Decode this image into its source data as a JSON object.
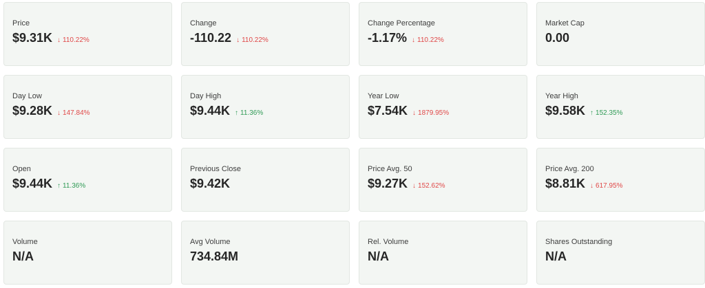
{
  "cards": [
    {
      "label": "Price",
      "value": "$9.31K",
      "change": {
        "direction": "down",
        "arrow": "↓",
        "text": "110.22%"
      }
    },
    {
      "label": "Change",
      "value": "-110.22",
      "change": {
        "direction": "down",
        "arrow": "↓",
        "text": "110.22%"
      }
    },
    {
      "label": "Change Percentage",
      "value": "-1.17%",
      "change": {
        "direction": "down",
        "arrow": "↓",
        "text": "110.22%"
      }
    },
    {
      "label": "Market Cap",
      "value": "0.00"
    },
    {
      "label": "Day Low",
      "value": "$9.28K",
      "change": {
        "direction": "down",
        "arrow": "↓",
        "text": "147.84%"
      }
    },
    {
      "label": "Day High",
      "value": "$9.44K",
      "change": {
        "direction": "up",
        "arrow": "↑",
        "text": "11.36%"
      }
    },
    {
      "label": "Year Low",
      "value": "$7.54K",
      "change": {
        "direction": "down",
        "arrow": "↓",
        "text": "1879.95%"
      }
    },
    {
      "label": "Year High",
      "value": "$9.58K",
      "change": {
        "direction": "up",
        "arrow": "↑",
        "text": "152.35%"
      }
    },
    {
      "label": "Open",
      "value": "$9.44K",
      "change": {
        "direction": "up",
        "arrow": "↑",
        "text": "11.36%"
      }
    },
    {
      "label": "Previous Close",
      "value": "$9.42K"
    },
    {
      "label": "Price Avg. 50",
      "value": "$9.27K",
      "change": {
        "direction": "down",
        "arrow": "↓",
        "text": "152.62%"
      }
    },
    {
      "label": "Price Avg. 200",
      "value": "$8.81K",
      "change": {
        "direction": "down",
        "arrow": "↓",
        "text": "617.95%"
      }
    },
    {
      "label": "Volume",
      "value": "N/A"
    },
    {
      "label": "Avg Volume",
      "value": "734.84M"
    },
    {
      "label": "Rel. Volume",
      "value": "N/A"
    },
    {
      "label": "Shares Outstanding",
      "value": "N/A"
    }
  ],
  "colors": {
    "down": "#e04848",
    "up": "#2f9a55",
    "card_bg": "#f3f6f3",
    "card_border": "#e2e7e2"
  }
}
